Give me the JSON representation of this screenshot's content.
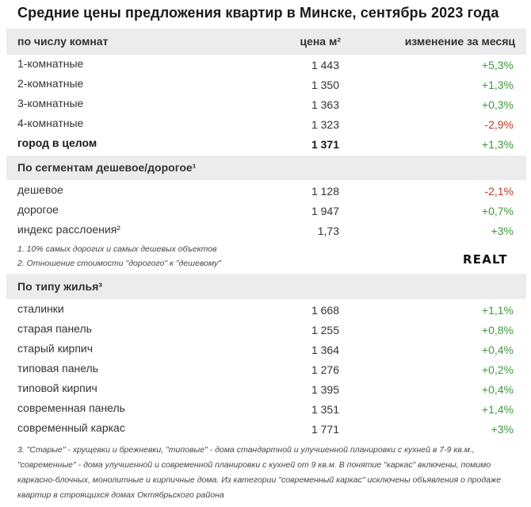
{
  "title": "Средние цены предложения квартир в Минске, сентябрь 2023 года",
  "header": {
    "col_rooms": "по числу комнат",
    "col_price": "цена м²",
    "col_change": "изменение за месяц"
  },
  "rooms": [
    {
      "label": "1-комнатные",
      "price": "1 443",
      "change": "+5,3%"
    },
    {
      "label": "2-комнатные",
      "price": "1 350",
      "change": "+1,3%"
    },
    {
      "label": "3-комнатные",
      "price": "1 363",
      "change": "+0,3%"
    },
    {
      "label": "4-комнатные",
      "price": "1 323",
      "change": "-2,9%"
    },
    {
      "label": "город в целом",
      "price": "1 371",
      "change": "+1,3%"
    }
  ],
  "segments": {
    "heading": "По сегментам дешевое/дорогое¹",
    "rows": [
      {
        "label": "дешевое",
        "price": "1 128",
        "change": "-2,1%"
      },
      {
        "label": "дорогое",
        "price": "1 947",
        "change": "+0,7%"
      },
      {
        "label": "индекс расслоения²",
        "price": "1,73",
        "change": "+3%"
      }
    ],
    "note1": "1. 10% самых дорогих и самых дешевых объектов",
    "note2": "2. Отношение стоимости \"дорогого\" к \"дешевому\""
  },
  "logo": "REALT",
  "housing": {
    "heading": "По типу жилья³",
    "rows": [
      {
        "label": "сталинки",
        "price": "1 668",
        "change": "+1,1%"
      },
      {
        "label": "старая панель",
        "price": "1 255",
        "change": "+0,8%"
      },
      {
        "label": "старый кирпич",
        "price": "1 364",
        "change": "+0,4%"
      },
      {
        "label": "типовая панель",
        "price": "1 276",
        "change": "+0,2%"
      },
      {
        "label": "типовой кирпич",
        "price": "1 395",
        "change": "+0,4%"
      },
      {
        "label": "современная панель",
        "price": "1 351",
        "change": "+1,4%"
      },
      {
        "label": "современный каркас",
        "price": "1 771",
        "change": "+3%"
      }
    ]
  },
  "footnote": "3. \"Старые\" - хрущевки и брежневки, \"типовые\" - дома стандартной и улучшенной планировки с кухней в 7-9 кв.м., \"современные\" - дома улучшенной и современной планировки с кухней от 9 кв.м. В понятие \"каркас\" включены, помимо каркасно-блочных, монолитные и кирпичные дома. Из категории \"современный каркас\" исключены объявления о продаже квартир в строящихся домах Октябрьского района",
  "colors": {
    "positive": "#3c9a3c",
    "negative": "#c0392b",
    "band": "#ececec"
  }
}
